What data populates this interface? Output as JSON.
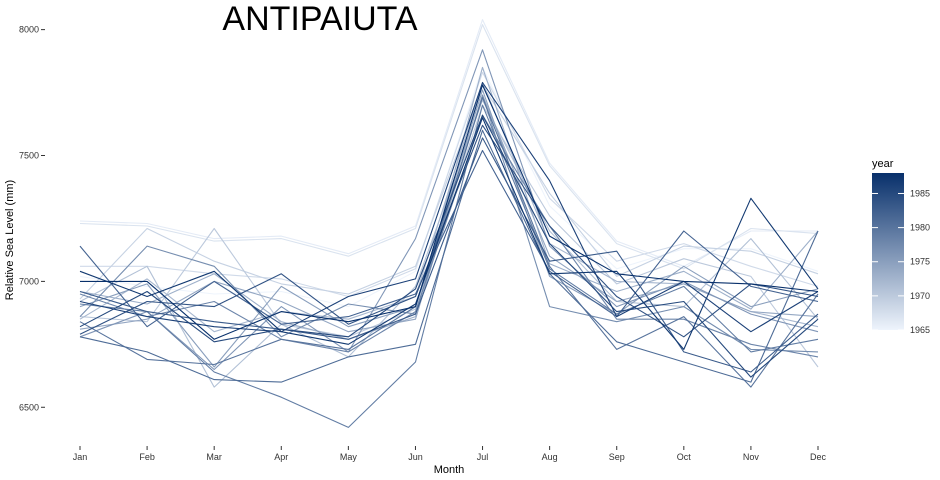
{
  "chart_data": {
    "type": "line",
    "title": "ANTIPAIUTA",
    "xlabel": "Month",
    "ylabel": "Relative Sea Level (mm)",
    "categories": [
      "Jan",
      "Feb",
      "Mar",
      "Apr",
      "May",
      "Jun",
      "Jul",
      "Aug",
      "Sep",
      "Oct",
      "Nov",
      "Dec"
    ],
    "yticks": [
      6500,
      7000,
      7500,
      8000
    ],
    "ylim": [
      6370,
      8070
    ],
    "grid": false,
    "legend": {
      "title": "year",
      "type": "colorbar",
      "range": [
        1965,
        1988
      ],
      "ticks": [
        1965,
        1970,
        1975,
        1980,
        1985
      ],
      "low_color": "#eef4fc",
      "high_color": "#08306b",
      "placement": "right"
    },
    "series": [
      {
        "year": 1965,
        "values": [
          7020,
          6980,
          6950,
          6960,
          6900,
          7040,
          7850,
          7300,
          7050,
          7130,
          7130,
          7040
        ]
      },
      {
        "year": 1966,
        "values": [
          7240,
          7230,
          7170,
          7180,
          7110,
          7220,
          8040,
          7470,
          7160,
          7060,
          7200,
          7200
        ]
      },
      {
        "year": 1967,
        "values": [
          7230,
          7220,
          7160,
          7170,
          7100,
          7210,
          8020,
          7460,
          7150,
          7050,
          7210,
          7190
        ]
      },
      {
        "year": 1968,
        "values": [
          7060,
          7060,
          7030,
          7010,
          6940,
          7050,
          7830,
          7330,
          7080,
          7150,
          7060,
          6980
        ]
      },
      {
        "year": 1969,
        "values": [
          6930,
          7210,
          7080,
          6990,
          6950,
          7060,
          7780,
          7350,
          7020,
          7140,
          7120,
          7030
        ]
      },
      {
        "year": 1970,
        "values": [
          6860,
          6840,
          7210,
          6830,
          6780,
          6890,
          7700,
          7260,
          6990,
          7090,
          7020,
          6660
        ]
      },
      {
        "year": 1971,
        "values": [
          6920,
          7060,
          6580,
          6830,
          6700,
          6980,
          7720,
          7200,
          6920,
          6900,
          7170,
          6850
        ]
      },
      {
        "year": 1972,
        "values": [
          6850,
          7010,
          6800,
          6880,
          6850,
          6940,
          7790,
          7150,
          7000,
          6990,
          6880,
          6820
        ]
      },
      {
        "year": 1973,
        "values": [
          6960,
          6910,
          7030,
          6840,
          6770,
          6860,
          7850,
          7070,
          6960,
          7040,
          6890,
          7200
        ]
      },
      {
        "year": 1974,
        "values": [
          6810,
          6850,
          7000,
          6920,
          6800,
          6850,
          7740,
          7100,
          6920,
          6990,
          6880,
          6860
        ]
      },
      {
        "year": 1975,
        "values": [
          6900,
          6990,
          6660,
          6980,
          6820,
          6900,
          7760,
          7020,
          6870,
          7060,
          6900,
          6970
        ]
      },
      {
        "year": 1976,
        "values": [
          6780,
          6880,
          6650,
          6900,
          6720,
          7170,
          7920,
          7140,
          6900,
          7000,
          6870,
          6800
        ]
      },
      {
        "year": 1977,
        "values": [
          6860,
          7140,
          7060,
          6780,
          6910,
          6870,
          7740,
          6900,
          6840,
          6900,
          6730,
          6720
        ]
      },
      {
        "year": 1978,
        "values": [
          6950,
          6860,
          6920,
          6770,
          6720,
          6880,
          7660,
          7220,
          6850,
          6850,
          6750,
          6700
        ]
      },
      {
        "year": 1979,
        "values": [
          6910,
          6880,
          6640,
          6540,
          6420,
          6680,
          7700,
          7050,
          6870,
          6980,
          6720,
          6770
        ]
      },
      {
        "year": 1980,
        "values": [
          6840,
          6690,
          6670,
          6770,
          6730,
          6900,
          7730,
          7060,
          6730,
          6860,
          6580,
          6950
        ]
      },
      {
        "year": 1981,
        "values": [
          6780,
          6720,
          6610,
          6600,
          6700,
          6750,
          7600,
          7030,
          6760,
          6680,
          6600,
          7200
        ]
      },
      {
        "year": 1982,
        "values": [
          7140,
          6820,
          7000,
          6830,
          6860,
          6950,
          7520,
          7040,
          6860,
          7200,
          6980,
          6920
        ]
      },
      {
        "year": 1983,
        "values": [
          6960,
          6880,
          6840,
          6810,
          6770,
          6870,
          7570,
          7080,
          7120,
          6720,
          6640,
          6870
        ]
      },
      {
        "year": 1984,
        "values": [
          6790,
          6920,
          6900,
          7030,
          6830,
          6940,
          7620,
          7220,
          6940,
          6780,
          6990,
          6940
        ]
      },
      {
        "year": 1985,
        "values": [
          6820,
          6960,
          6760,
          6810,
          6780,
          6970,
          7660,
          7150,
          6880,
          6920,
          6620,
          6850
        ]
      },
      {
        "year": 1986,
        "values": [
          6920,
          6860,
          6820,
          6800,
          6940,
          7010,
          7790,
          7400,
          6860,
          7000,
          6800,
          6960
        ]
      },
      {
        "year": 1987,
        "values": [
          7040,
          6940,
          7040,
          6800,
          6750,
          6910,
          7650,
          7030,
          7040,
          6730,
          7330,
          6970
        ]
      },
      {
        "year": 1988,
        "values": [
          7000,
          7000,
          6770,
          6880,
          6840,
          6900,
          7780,
          7180,
          7030,
          7000,
          6990,
          6960
        ]
      }
    ]
  }
}
